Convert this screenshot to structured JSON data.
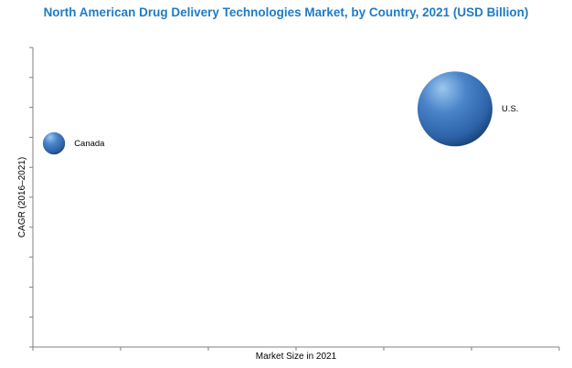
{
  "chart_data": {
    "type": "scatter",
    "subtype": "bubble",
    "title": "North American Drug Delivery Technologies Market, by Country, 2021 (USD Billion)",
    "xlabel": "Market Size in 2021",
    "ylabel": "CAGR (2016–2021)",
    "tick_labels_shown": false,
    "x_ticks": 6,
    "y_ticks": 10,
    "series": [
      {
        "name": "U.S.",
        "x": 0.802,
        "y": 0.795,
        "size": 1.0,
        "label": "U.S."
      },
      {
        "name": "Canada",
        "x": 0.04,
        "y": 0.68,
        "size": 0.088,
        "label": "Canada"
      }
    ],
    "colors": {
      "bubble_light": "#9cc7f0",
      "bubble_mid": "#4a84c9",
      "bubble_dark": "#173f73",
      "title": "#1f7bc4",
      "axis": "#808080"
    }
  }
}
